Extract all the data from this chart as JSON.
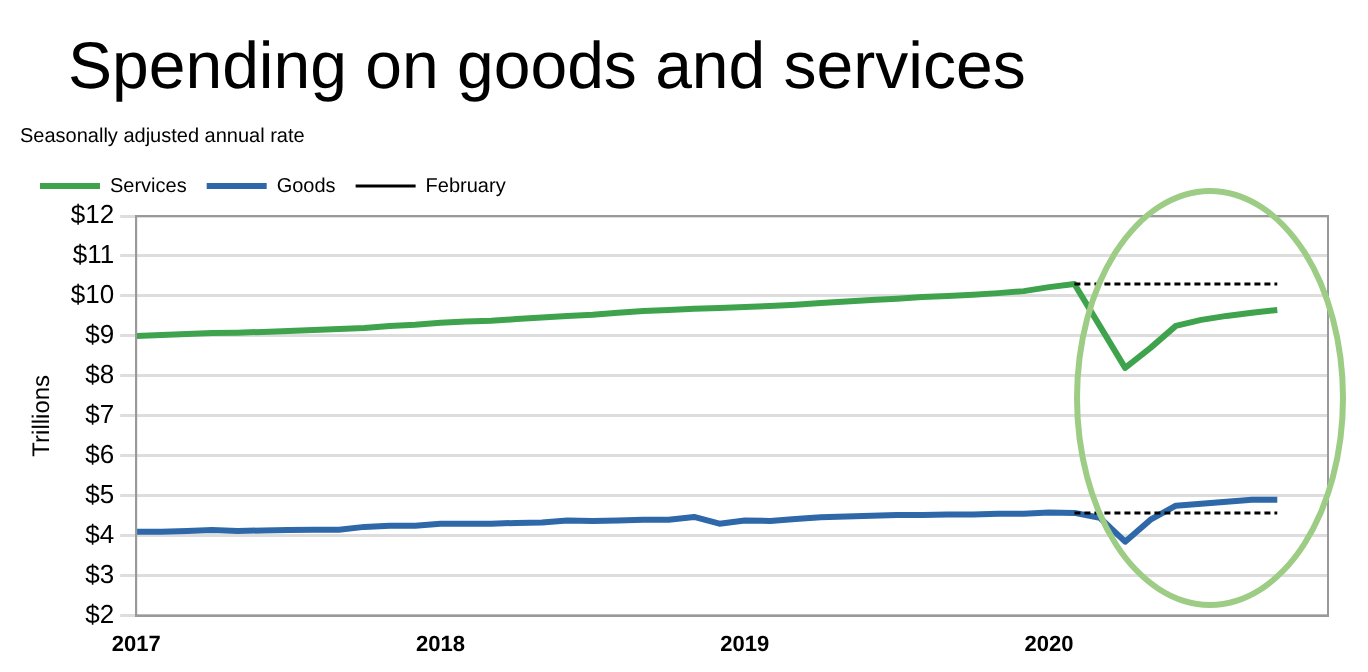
{
  "chart_data": {
    "type": "line",
    "title": "Spending on goods and services",
    "subtitle": "Seasonally adjusted annual rate",
    "ylabel": "Trillions",
    "x": [
      "2017-01",
      "2017-02",
      "2017-03",
      "2017-04",
      "2017-05",
      "2017-06",
      "2017-07",
      "2017-08",
      "2017-09",
      "2017-10",
      "2017-11",
      "2017-12",
      "2018-01",
      "2018-02",
      "2018-03",
      "2018-04",
      "2018-05",
      "2018-06",
      "2018-07",
      "2018-08",
      "2018-09",
      "2018-10",
      "2018-11",
      "2018-12",
      "2019-01",
      "2019-02",
      "2019-03",
      "2019-04",
      "2019-05",
      "2019-06",
      "2019-07",
      "2019-08",
      "2019-09",
      "2019-10",
      "2019-11",
      "2019-12",
      "2020-01",
      "2020-02",
      "2020-03",
      "2020-04",
      "2020-05",
      "2020-06",
      "2020-07",
      "2020-08",
      "2020-09",
      "2020-10"
    ],
    "series": [
      {
        "name": "Services",
        "color": "#3fa34d",
        "values": [
          9.0,
          9.02,
          9.05,
          9.07,
          9.08,
          9.1,
          9.12,
          9.15,
          9.17,
          9.2,
          9.25,
          9.28,
          9.33,
          9.36,
          9.38,
          9.42,
          9.46,
          9.5,
          9.53,
          9.58,
          9.62,
          9.65,
          9.68,
          9.7,
          9.72,
          9.75,
          9.78,
          9.82,
          9.86,
          9.9,
          9.93,
          9.97,
          10.0,
          10.03,
          10.07,
          10.12,
          10.22,
          10.3,
          9.25,
          8.2,
          8.7,
          9.25,
          9.4,
          9.5,
          9.58,
          9.65
        ]
      },
      {
        "name": "Goods",
        "color": "#2e68a8",
        "values": [
          4.1,
          4.1,
          4.12,
          4.14,
          4.12,
          4.13,
          4.14,
          4.15,
          4.15,
          4.22,
          4.25,
          4.25,
          4.3,
          4.3,
          4.3,
          4.32,
          4.33,
          4.38,
          4.37,
          4.38,
          4.4,
          4.4,
          4.47,
          4.3,
          4.38,
          4.37,
          4.42,
          4.46,
          4.48,
          4.5,
          4.52,
          4.52,
          4.53,
          4.53,
          4.55,
          4.55,
          4.58,
          4.57,
          4.45,
          3.85,
          4.4,
          4.75,
          4.8,
          4.85,
          4.9,
          4.9
        ]
      },
      {
        "name": "February",
        "color": "#000000",
        "line_style": "dotted",
        "x": [
          "2020-02",
          "2020-10"
        ],
        "values": [
          10.3,
          10.3
        ]
      },
      {
        "color": "#000000",
        "line_style": "dotted",
        "x": [
          "2020-02",
          "2020-10"
        ],
        "values": [
          4.57,
          4.57
        ]
      }
    ],
    "xlim": [
      "2017",
      "2020-12"
    ],
    "xticks": [
      "2017",
      "2018",
      "2019",
      "2020"
    ],
    "ylim": [
      2,
      12
    ],
    "yticks": [
      {
        "value": 2,
        "label": "$2"
      },
      {
        "value": 3,
        "label": "$3"
      },
      {
        "value": 4,
        "label": "$4"
      },
      {
        "value": 5,
        "label": "$5"
      },
      {
        "value": 6,
        "label": "$6"
      },
      {
        "value": 7,
        "label": "$7"
      },
      {
        "value": 8,
        "label": "$8"
      },
      {
        "value": 9,
        "label": "$9"
      },
      {
        "value": 10,
        "label": "$10"
      },
      {
        "value": 11,
        "label": "$11"
      },
      {
        "value": 12,
        "label": "$12"
      }
    ],
    "grid": "y",
    "legend": "top left",
    "marker": "none",
    "line_style": "solid"
  }
}
